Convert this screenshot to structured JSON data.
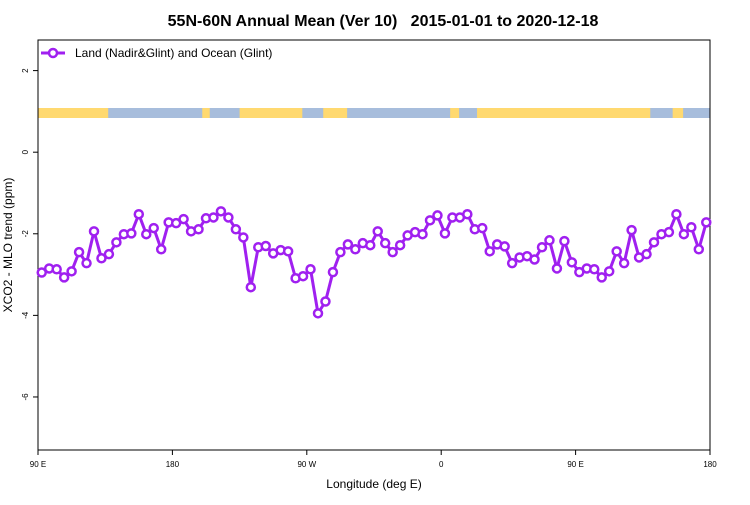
{
  "chart_data": {
    "type": "line",
    "title": "55N-60N Annual Mean (Ver 10)   2015-01-01 to 2020-12-18",
    "xlabel": "Longitude (deg E)",
    "ylabel": "XCO2 - MLO trend (ppm)",
    "ylim": [
      -7.3,
      2.75
    ],
    "yticks": [
      2,
      0,
      -2,
      -4,
      -6
    ],
    "ytick_labels": [
      "2",
      "0",
      "-2",
      "-4",
      "-6"
    ],
    "xrange_deg_east": [
      90,
      540
    ],
    "xticks_deg_east": [
      90,
      180,
      270,
      360,
      450,
      540
    ],
    "xtick_labels": [
      "90 E",
      "180",
      "90 W",
      "0",
      "90 E",
      "180"
    ],
    "grid": false,
    "legend_position": "top-left",
    "series": [
      {
        "name": "Land (Nadir&Glint) and Ocean (Glint)",
        "color": "#A020F0",
        "marker": "open-circle",
        "x_deg_east": [
          92.5,
          97.5,
          102.5,
          107.5,
          112.5,
          117.5,
          122.5,
          127.5,
          132.5,
          137.5,
          142.5,
          147.5,
          152.5,
          157.5,
          162.5,
          167.5,
          172.5,
          177.5,
          182.5,
          187.5,
          192.5,
          197.5,
          202.5,
          207.5,
          212.5,
          217.5,
          222.5,
          227.5,
          232.5,
          237.5,
          242.5,
          247.5,
          252.5,
          257.5,
          262.5,
          267.5,
          272.5,
          277.5,
          282.5,
          287.5,
          292.5,
          297.5,
          302.5,
          307.5,
          312.5,
          317.5,
          322.5,
          327.5,
          332.5,
          337.5,
          342.5,
          347.5,
          352.5,
          357.5,
          362.5,
          367.5,
          372.5,
          377.5,
          382.5,
          387.5,
          392.5,
          397.5,
          402.5,
          407.5,
          412.5,
          417.5,
          422.5,
          427.5,
          432.5,
          437.5,
          442.5,
          447.5,
          452.5,
          457.5,
          462.5,
          467.5,
          472.5,
          477.5,
          482.5,
          487.5,
          492.5,
          497.5,
          502.5,
          507.5,
          512.5,
          517.5,
          522.5,
          527.5,
          532.5,
          537.5
        ],
        "values": [
          -2.95,
          -2.85,
          -2.87,
          -3.07,
          -2.92,
          -2.45,
          -2.72,
          -1.94,
          -2.6,
          -2.5,
          -2.21,
          -2.01,
          -1.99,
          -1.52,
          -2.01,
          -1.86,
          -2.38,
          -1.72,
          -1.74,
          -1.64,
          -1.94,
          -1.89,
          -1.62,
          -1.6,
          -1.45,
          -1.6,
          -1.89,
          -2.09,
          -3.31,
          -2.33,
          -2.3,
          -2.48,
          -2.4,
          -2.43,
          -3.09,
          -3.04,
          -2.87,
          -3.95,
          -3.66,
          -2.94,
          -2.45,
          -2.26,
          -2.38,
          -2.23,
          -2.28,
          -1.94,
          -2.23,
          -2.45,
          -2.28,
          -2.04,
          -1.96,
          -2.01,
          -1.67,
          -1.55,
          -1.99,
          -1.6,
          -1.6,
          -1.52,
          -1.89,
          -1.86,
          -2.43,
          -2.26,
          -2.31,
          -2.72,
          -2.58,
          -2.55,
          -2.63,
          -2.33,
          -2.16,
          -2.85,
          -2.18,
          -2.7,
          -2.94,
          -2.85,
          -2.87,
          -3.07,
          -2.92,
          -2.43,
          -2.72,
          -1.91,
          -2.58,
          -2.5,
          -2.21,
          -2.01,
          -1.96,
          -1.52,
          -2.01,
          -1.84,
          -2.38,
          -1.72
        ]
      }
    ],
    "land_ocean_strip": {
      "colors": {
        "land": "#FFD970",
        "ocean": "#A7BDDC"
      },
      "segments_deg_east": [
        {
          "type": "land",
          "from": 90,
          "to": 137
        },
        {
          "type": "ocean",
          "from": 137,
          "to": 200
        },
        {
          "type": "land",
          "from": 200,
          "to": 205
        },
        {
          "type": "ocean",
          "from": 205,
          "to": 225
        },
        {
          "type": "land",
          "from": 225,
          "to": 267
        },
        {
          "type": "ocean",
          "from": 267,
          "to": 281
        },
        {
          "type": "land",
          "from": 281,
          "to": 297
        },
        {
          "type": "ocean",
          "from": 297,
          "to": 366
        },
        {
          "type": "land",
          "from": 366,
          "to": 372
        },
        {
          "type": "ocean",
          "from": 372,
          "to": 384
        },
        {
          "type": "land",
          "from": 384,
          "to": 500
        },
        {
          "type": "ocean",
          "from": 500,
          "to": 515
        },
        {
          "type": "land",
          "from": 515,
          "to": 522
        },
        {
          "type": "ocean",
          "from": 522,
          "to": 540
        }
      ]
    }
  }
}
